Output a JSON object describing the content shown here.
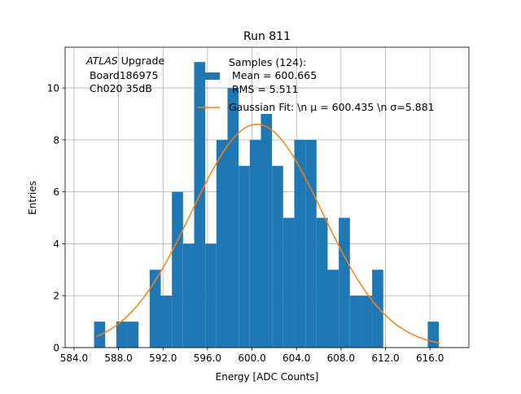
{
  "chart_data": {
    "type": "bar",
    "title": "Run 811",
    "xlabel": "Energy [ADC Counts]",
    "ylabel": "Entries",
    "xlim": [
      583.2,
      619.5
    ],
    "ylim": [
      0,
      11.57
    ],
    "xticks": [
      584.0,
      588.0,
      592.0,
      596.0,
      600.0,
      604.0,
      608.0,
      612.0,
      616.0
    ],
    "xtick_labels": [
      "584.0",
      "588.0",
      "592.0",
      "596.0",
      "600.0",
      "604.0",
      "608.0",
      "612.0",
      "616.0"
    ],
    "yticks": [
      0,
      2,
      4,
      6,
      8,
      10
    ],
    "ytick_labels": [
      "0",
      "2",
      "4",
      "6",
      "8",
      "10"
    ],
    "grid": true,
    "bin_width": 1.0,
    "bins": [
      {
        "x": 585.8,
        "count": 1
      },
      {
        "x": 587.8,
        "count": 1
      },
      {
        "x": 588.8,
        "count": 1
      },
      {
        "x": 590.8,
        "count": 3
      },
      {
        "x": 591.8,
        "count": 2
      },
      {
        "x": 592.8,
        "count": 6
      },
      {
        "x": 593.8,
        "count": 4
      },
      {
        "x": 594.8,
        "count": 11
      },
      {
        "x": 595.8,
        "count": 4
      },
      {
        "x": 596.8,
        "count": 8
      },
      {
        "x": 597.8,
        "count": 10
      },
      {
        "x": 598.8,
        "count": 7
      },
      {
        "x": 599.8,
        "count": 8
      },
      {
        "x": 600.8,
        "count": 9
      },
      {
        "x": 601.8,
        "count": 7
      },
      {
        "x": 602.8,
        "count": 5
      },
      {
        "x": 603.8,
        "count": 8
      },
      {
        "x": 604.8,
        "count": 8
      },
      {
        "x": 605.8,
        "count": 5
      },
      {
        "x": 606.8,
        "count": 3
      },
      {
        "x": 607.8,
        "count": 5
      },
      {
        "x": 608.8,
        "count": 2
      },
      {
        "x": 609.8,
        "count": 2
      },
      {
        "x": 610.8,
        "count": 3
      },
      {
        "x": 615.8,
        "count": 1
      }
    ],
    "fit": {
      "type": "gaussian",
      "mu": 600.435,
      "sigma": 5.881,
      "amplitude": 8.6,
      "x_range": [
        586.05,
        616.9
      ]
    },
    "colors": {
      "bars": "#1f77b4",
      "fit": "#ff7f0e",
      "grid": "#b0b0b0"
    },
    "legend": {
      "placement": "top-right",
      "entries": [
        {
          "lines": [
            "Samples (124):",
            " Mean = 600.665",
            " RMS = 5.511"
          ],
          "kind": "bar"
        },
        {
          "lines": [
            "Gaussian Fit: \\n μ = 600.435 \\n σ=5.881"
          ],
          "kind": "line"
        }
      ]
    },
    "annotation": {
      "italic": "ATLAS",
      "rest": " Upgrade",
      "lines": [
        " Board186975",
        " Ch020 35dB"
      ],
      "placement": "top-left"
    }
  }
}
